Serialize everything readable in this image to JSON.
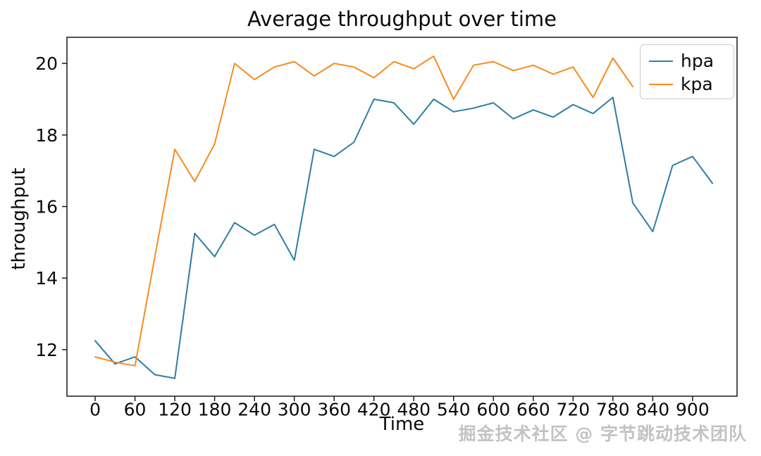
{
  "chart_data": {
    "type": "line",
    "title": "Average throughput over time",
    "xlabel": "Time",
    "ylabel": "throughput",
    "grid": false,
    "legend_position": "upper right",
    "xlim": [
      -42.5,
      967
    ],
    "ylim": [
      10.7,
      20.73
    ],
    "xticks": [
      0,
      60,
      120,
      180,
      240,
      300,
      360,
      420,
      480,
      540,
      600,
      660,
      720,
      780,
      840,
      900
    ],
    "yticks": [
      12,
      14,
      16,
      18,
      20
    ],
    "series": [
      {
        "name": "hpa",
        "color": "#2e7da6",
        "x": [
          0,
          30,
          60,
          90,
          120,
          150,
          180,
          210,
          240,
          270,
          300,
          330,
          360,
          390,
          420,
          450,
          480,
          510,
          540,
          570,
          600,
          630,
          660,
          690,
          720,
          750,
          780,
          810,
          840,
          870,
          900,
          930
        ],
        "values": [
          12.25,
          11.6,
          11.8,
          11.3,
          11.2,
          15.25,
          14.6,
          15.55,
          15.2,
          15.5,
          14.5,
          17.6,
          17.4,
          17.8,
          19.0,
          18.9,
          18.3,
          19.0,
          18.65,
          18.75,
          18.9,
          18.45,
          18.7,
          18.5,
          18.85,
          18.6,
          19.05,
          16.1,
          15.3,
          17.15,
          17.4,
          16.65
        ]
      },
      {
        "name": "kpa",
        "color": "#f78b1e",
        "x": [
          0,
          30,
          60,
          90,
          120,
          150,
          180,
          210,
          240,
          270,
          300,
          330,
          360,
          390,
          420,
          450,
          480,
          510,
          540,
          570,
          600,
          630,
          660,
          690,
          720,
          750,
          780,
          810
        ],
        "values": [
          11.8,
          11.65,
          11.55,
          14.6,
          17.6,
          16.7,
          17.75,
          20.0,
          19.55,
          19.9,
          20.05,
          19.65,
          20.0,
          19.9,
          19.6,
          20.05,
          19.85,
          20.2,
          19.0,
          19.95,
          20.05,
          19.8,
          19.95,
          19.7,
          19.9,
          19.05,
          20.15,
          19.35
        ]
      }
    ]
  },
  "watermark": {
    "text": "掘金技术社区 @ 字节跳动技术团队"
  }
}
